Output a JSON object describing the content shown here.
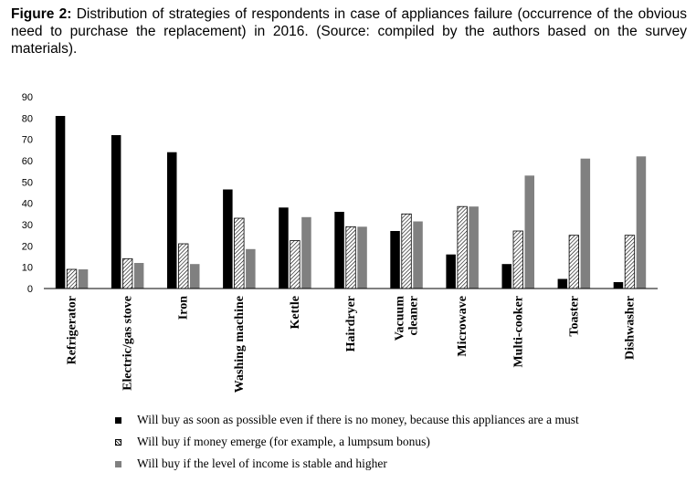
{
  "caption": {
    "label": "Figure 2:",
    "text": "Distribution of strategies of respondents in case of appliances failure (occurrence of the obvious need to purchase the replacement) in 2016. (Source: compiled by the authors based on the survey materials)."
  },
  "chart_data": {
    "type": "bar",
    "categories": [
      "Refrigerator",
      "Electric/gas stove",
      "Iron",
      "Washing machine",
      "Kettle",
      "Hairdryer",
      "Vacuum cleaner",
      "Microwave",
      "Multi-cooker",
      "Toaster",
      "Dishwasher"
    ],
    "category_lines": [
      [
        "Refrigerator"
      ],
      [
        "Electric/gas stove"
      ],
      [
        "Iron"
      ],
      [
        "Washing machine"
      ],
      [
        "Kettle"
      ],
      [
        "Hairdryer"
      ],
      [
        "Vacuum",
        "cleaner"
      ],
      [
        "Microwave"
      ],
      [
        "Multi-cooker"
      ],
      [
        "Toaster"
      ],
      [
        "Dishwasher"
      ]
    ],
    "series": [
      {
        "name": "Will buy as soon as possible even if there is no money, because this appliances are a must",
        "style": "solid-black",
        "values": [
          81,
          72,
          64,
          46.5,
          38,
          36,
          27,
          16,
          11.5,
          4.5,
          3
        ]
      },
      {
        "name": "Will buy if money emerge (for example, a lumpsum bonus)",
        "style": "hatched",
        "values": [
          9,
          14,
          21,
          33,
          22.5,
          29,
          35,
          38.5,
          27,
          25,
          25
        ]
      },
      {
        "name": "Will buy if the level of income is stable and higher",
        "style": "solid-gray",
        "values": [
          9,
          12,
          11.5,
          18.5,
          33.5,
          29,
          31.5,
          38.5,
          53,
          61,
          62
        ]
      }
    ],
    "xlabel": "",
    "ylabel": "",
    "ylim": [
      0,
      90
    ],
    "yticks": [
      "0",
      "10",
      "20",
      "30",
      "40",
      "50",
      "60",
      "70",
      "80",
      "90"
    ],
    "grid": false,
    "legend_position": "bottom",
    "colors": {
      "series1": "#000000",
      "series2": "#ffffff",
      "series3": "#808080",
      "axis": "#000000"
    }
  }
}
